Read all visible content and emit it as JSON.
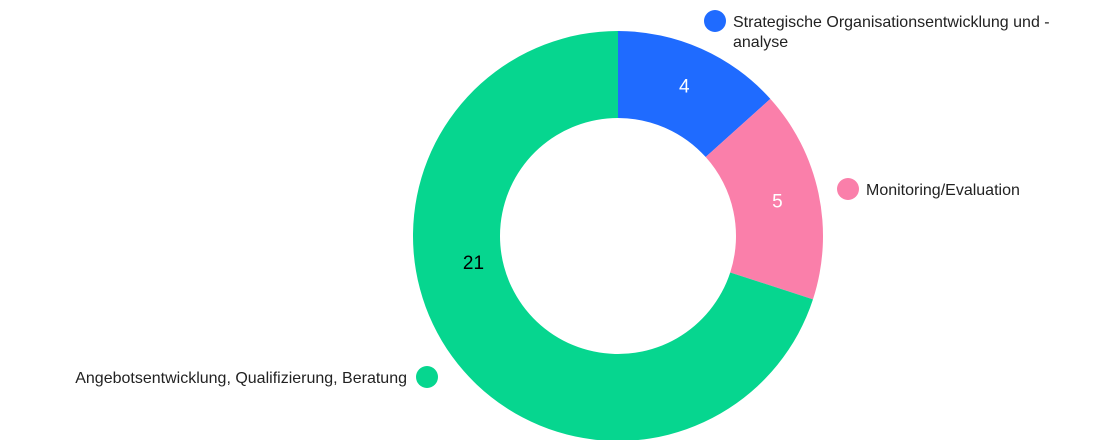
{
  "chart_data": {
    "type": "pie",
    "title": "",
    "categories": [
      "Strategische Organisationsentwicklung und -analyse",
      "Monitoring/Evaluation",
      "Angebotsentwicklung, Qualifizierung, Beratung"
    ],
    "values": [
      4,
      5,
      21
    ],
    "colors": [
      "#1f6bff",
      "#fa7faa",
      "#06d68f"
    ],
    "label_colors": [
      "#ffffff",
      "#ffffff",
      "#000000"
    ],
    "legend_lines": [
      [
        "Strategische Organisationsentwicklung und -",
        "analyse"
      ],
      [
        "Monitoring/Evaluation"
      ],
      [
        "Angebotsentwicklung, Qualifizierung, Beratung"
      ]
    ],
    "donut": true,
    "legend_placement": "outside-labels"
  }
}
